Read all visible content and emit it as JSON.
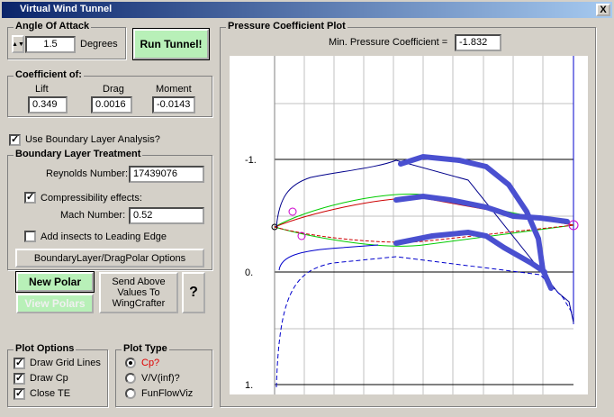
{
  "window": {
    "title": "Virtual Wind Tunnel",
    "close": "X"
  },
  "angle_of_attack": {
    "label": "Angle Of Attack",
    "value": "1.5",
    "unit": "Degrees"
  },
  "run_button": "Run Tunnel!",
  "coefficients": {
    "label": "Coefficient of:",
    "lift": {
      "label": "Lift",
      "value": "0.349"
    },
    "drag": {
      "label": "Drag",
      "value": "0.0016"
    },
    "moment": {
      "label": "Moment",
      "value": "-0.0143"
    }
  },
  "boundary_layer_check": {
    "label": "Use Boundary Layer Analysis?",
    "checked": true
  },
  "boundary_layer": {
    "label": "Boundary Layer Treatment",
    "reynolds_label": "Reynolds Number:",
    "reynolds": "17439076",
    "compressibility": {
      "label": "Compressibility effects:",
      "checked": true
    },
    "mach_label": "Mach Number:",
    "mach": "0.52",
    "insects": {
      "label": "Add insects to Leading Edge",
      "checked": false
    },
    "options_button": "BoundaryLayer/DragPolar Options"
  },
  "buttons": {
    "new_polar": "New Polar",
    "view_polars": "View Polars",
    "send": "Send Above Values To WingCrafter",
    "help": "?"
  },
  "plot_options": {
    "label": "Plot Options",
    "items": [
      {
        "label": "Draw Grid Lines",
        "checked": true
      },
      {
        "label": "Draw Cp",
        "checked": true
      },
      {
        "label": "Close TE",
        "checked": true
      }
    ]
  },
  "plot_type": {
    "label": "Plot Type",
    "items": [
      {
        "label": "Cp?",
        "selected": true
      },
      {
        "label": "V/V(inf)?",
        "selected": false
      },
      {
        "label": "FunFlowViz",
        "selected": false
      }
    ]
  },
  "plot": {
    "title": "Pressure Coefficient Plot",
    "min_cp_label": "Min. Pressure Coefficient =",
    "min_cp": "-1.832",
    "axis_labels": [
      "-1.",
      "0.",
      "1."
    ]
  }
}
